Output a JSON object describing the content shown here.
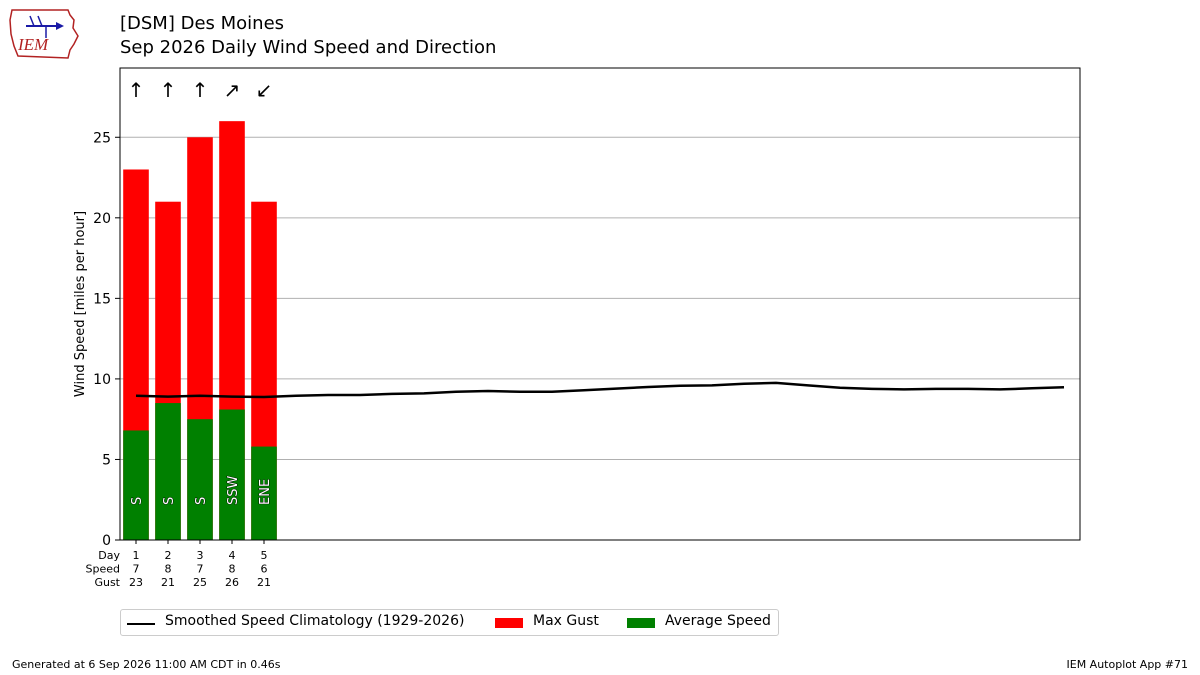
{
  "header": {
    "title_line1": "[DSM] Des Moines",
    "title_line2": "Sep 2026 Daily Wind Speed and Direction",
    "logo_text": "IEM"
  },
  "chart_data": {
    "type": "bar",
    "ylabel": "Wind Speed [miles per hour]",
    "ylim": [
      0,
      29.3
    ],
    "xlim": [
      0.5,
      30.5
    ],
    "yticks": [
      0,
      5,
      10,
      15,
      20,
      25
    ],
    "grid": true,
    "categories": [
      1,
      2,
      3,
      4,
      5
    ],
    "series": [
      {
        "name": "Max Gust",
        "color": "#ff0000",
        "values": [
          23,
          21,
          25,
          26,
          21
        ]
      },
      {
        "name": "Average Speed",
        "color": "#008000",
        "values": [
          6.8,
          8.5,
          7.5,
          8.1,
          5.8
        ]
      }
    ],
    "direction_labels": [
      "S",
      "S",
      "S",
      "SSW",
      "ENE"
    ],
    "direction_arrows": [
      "↑",
      "↑",
      "↑",
      "↗",
      "↙"
    ],
    "table_rows": [
      {
        "label": "Day",
        "values": [
          "1",
          "2",
          "3",
          "4",
          "5"
        ]
      },
      {
        "label": "Speed",
        "values": [
          "7",
          "8",
          "7",
          "8",
          "6"
        ]
      },
      {
        "label": "Gust",
        "values": [
          "23",
          "21",
          "25",
          "26",
          "21"
        ]
      }
    ],
    "climatology": {
      "name": "Smoothed Speed Climatology (1929-2026)",
      "color": "#000000",
      "x": [
        1,
        2,
        3,
        4,
        5,
        6,
        7,
        8,
        9,
        10,
        11,
        12,
        13,
        14,
        15,
        16,
        17,
        18,
        19,
        20,
        21,
        22,
        23,
        24,
        25,
        26,
        27,
        28,
        29,
        30
      ],
      "y": [
        8.95,
        8.9,
        8.95,
        8.9,
        8.88,
        8.95,
        9.0,
        9.0,
        9.07,
        9.1,
        9.2,
        9.25,
        9.2,
        9.2,
        9.3,
        9.4,
        9.5,
        9.58,
        9.6,
        9.7,
        9.75,
        9.6,
        9.45,
        9.38,
        9.35,
        9.38,
        9.38,
        9.35,
        9.42,
        9.48
      ]
    },
    "legend_position": "bottom-left"
  },
  "legend": {
    "items": [
      {
        "label": "Smoothed Speed Climatology (1929-2026)"
      },
      {
        "label": "Max Gust"
      },
      {
        "label": "Average Speed"
      }
    ]
  },
  "footer": {
    "left": "Generated at 6 Sep 2026 11:00 AM CDT in 0.46s",
    "right": "IEM Autoplot App #71"
  }
}
